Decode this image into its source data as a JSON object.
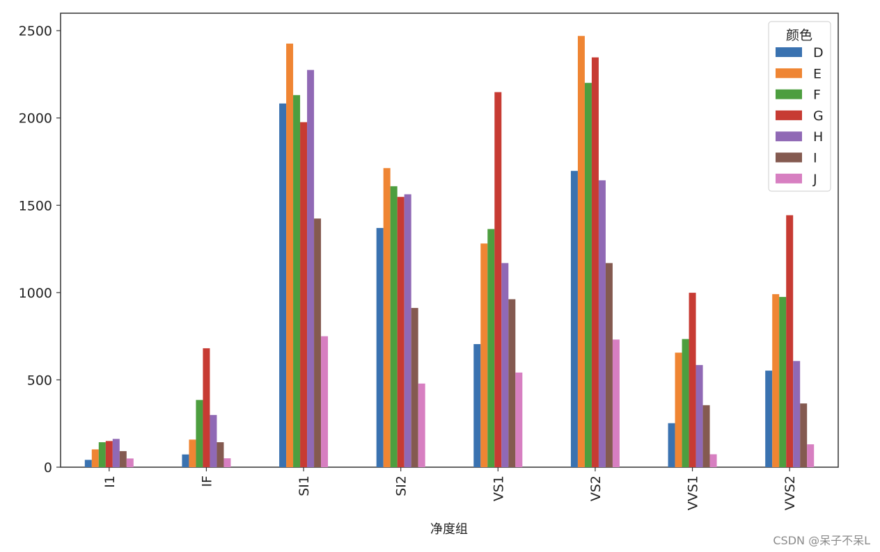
{
  "chart_data": {
    "type": "bar",
    "title": "",
    "xlabel": "净度组",
    "ylabel": "",
    "categories": [
      "I1",
      "IF",
      "SI1",
      "SI2",
      "VS1",
      "VS2",
      "VVS1",
      "VVS2"
    ],
    "ylim": [
      0,
      2600
    ],
    "yticks": [
      0,
      500,
      1000,
      1500,
      2000,
      2500
    ],
    "grid": false,
    "legend": {
      "title": "颜色",
      "placement": "top-right"
    },
    "series": [
      {
        "name": "D",
        "color": "#3a72b0",
        "values": [
          42,
          73,
          2083,
          1370,
          705,
          1697,
          252,
          553
        ]
      },
      {
        "name": "E",
        "color": "#ef8533",
        "values": [
          102,
          158,
          2426,
          1713,
          1281,
          2470,
          656,
          991
        ]
      },
      {
        "name": "F",
        "color": "#4d9e3f",
        "values": [
          143,
          385,
          2131,
          1609,
          1364,
          2201,
          734,
          975
        ]
      },
      {
        "name": "G",
        "color": "#c73b33",
        "values": [
          150,
          681,
          1976,
          1548,
          2148,
          2347,
          999,
          1443
        ]
      },
      {
        "name": "H",
        "color": "#9069b5",
        "values": [
          162,
          299,
          2275,
          1563,
          1169,
          1643,
          585,
          608
        ]
      },
      {
        "name": "I",
        "color": "#845a50",
        "values": [
          92,
          143,
          1424,
          912,
          962,
          1169,
          355,
          365
        ]
      },
      {
        "name": "J",
        "color": "#d77fc1",
        "values": [
          50,
          51,
          750,
          479,
          542,
          731,
          74,
          131
        ]
      }
    ]
  },
  "watermark": "CSDN @呆子不呆L"
}
